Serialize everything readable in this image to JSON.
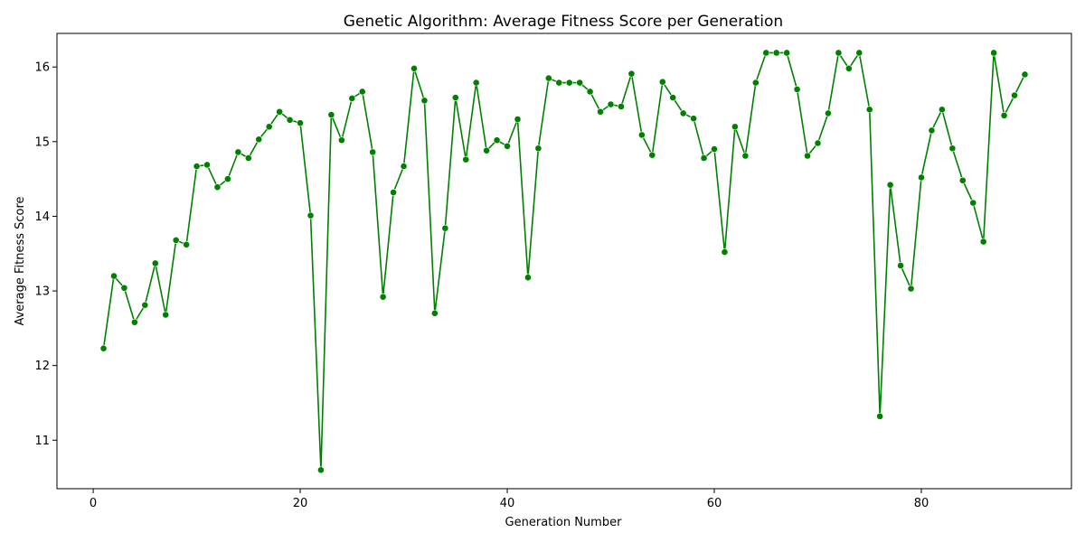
{
  "chart_data": {
    "type": "line",
    "title": "Genetic Algorithm: Average Fitness Score per Generation",
    "xlabel": "Generation Number",
    "ylabel": "Average Fitness Score",
    "xlim": [
      -3.5,
      94.5
    ],
    "ylim": [
      10.35,
      16.45
    ],
    "xticks": [
      0,
      20,
      40,
      60,
      80
    ],
    "yticks": [
      11,
      12,
      13,
      14,
      15,
      16
    ],
    "grid": false,
    "legend": "none",
    "line_color": "#008000",
    "marker": "circle",
    "series": [
      {
        "x": [
          1,
          2,
          3,
          4,
          5,
          6,
          7,
          8,
          9,
          10,
          11,
          12,
          13,
          14,
          15,
          16,
          17,
          18,
          19,
          20,
          21,
          22,
          23,
          24,
          25,
          26,
          27,
          28,
          29,
          30,
          31,
          32,
          33,
          34,
          35,
          36,
          37,
          38,
          39,
          40,
          41,
          42,
          43,
          44,
          45,
          46,
          47,
          48,
          49,
          50,
          51,
          52,
          53,
          54,
          55,
          56,
          57,
          58,
          59,
          60,
          61,
          62,
          63,
          64,
          65,
          66,
          67,
          68,
          69,
          70,
          71,
          72,
          73,
          74,
          75,
          76,
          77,
          78,
          79,
          80,
          81,
          82,
          83,
          84,
          85,
          86,
          87,
          88,
          89,
          90
        ],
        "values": [
          12.23,
          13.2,
          13.04,
          12.58,
          12.81,
          13.37,
          12.68,
          13.68,
          13.62,
          14.67,
          14.69,
          14.39,
          14.5,
          14.86,
          14.78,
          15.03,
          15.2,
          15.4,
          15.29,
          15.25,
          14.01,
          10.6,
          15.36,
          15.02,
          15.58,
          15.67,
          14.86,
          12.92,
          14.32,
          14.67,
          15.98,
          15.55,
          12.7,
          13.84,
          15.59,
          14.76,
          15.79,
          14.88,
          15.02,
          14.94,
          15.3,
          13.18,
          14.91,
          15.85,
          15.79,
          15.79,
          15.79,
          15.67,
          15.4,
          15.5,
          15.47,
          15.91,
          15.09,
          14.82,
          15.8,
          15.59,
          15.38,
          15.31,
          14.78,
          14.9,
          13.52,
          15.2,
          14.81,
          15.79,
          16.19,
          16.19,
          16.19,
          15.7,
          14.81,
          14.98,
          15.38,
          16.19,
          15.98,
          16.19,
          15.43,
          11.32,
          14.42,
          13.34,
          13.03,
          14.52,
          15.15,
          15.43,
          14.91,
          14.48,
          14.18,
          13.66,
          16.19,
          15.35,
          15.62,
          15.9
        ]
      }
    ]
  }
}
